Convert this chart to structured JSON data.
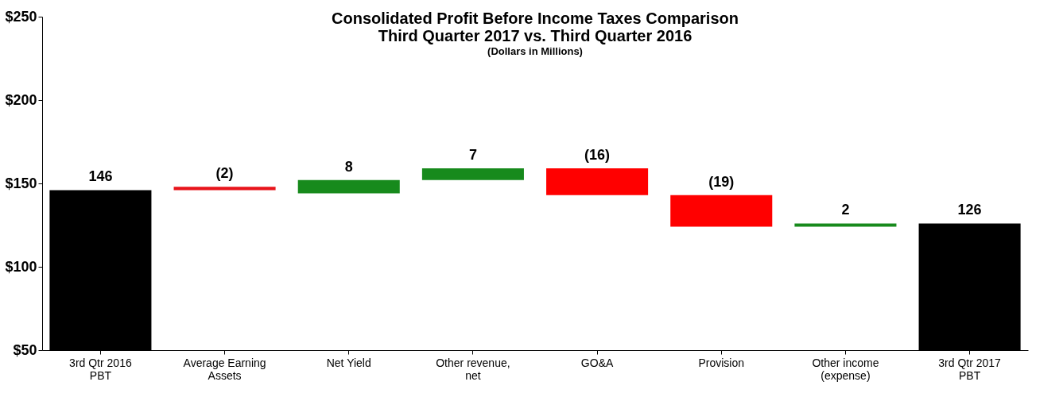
{
  "chart_data": {
    "type": "bar",
    "title": "Consolidated Profit Before Income Taxes Comparison\nThird Quarter 2017 vs. Third Quarter 2016",
    "subtitle": "(Dollars in Millions)",
    "categories": [
      "3rd Qtr 2016 PBT",
      "Average Earning Assets",
      "Net Yield",
      "Other revenue, net",
      "GO&A",
      "Provision",
      "Other income (expense)",
      "3rd Qtr 2017 PBT"
    ],
    "values": [
      146,
      -2,
      8,
      7,
      -16,
      -19,
      2,
      126
    ],
    "base": [
      null,
      148,
      144,
      152,
      159,
      143,
      124,
      null
    ],
    "colors": [
      "#000000",
      "#e8141b",
      "#178a1c",
      "#178a1c",
      "#ff0000",
      "#ff0000",
      "#178a1c",
      "#000000"
    ],
    "value_labels": [
      "146",
      "(2)",
      "8",
      "7",
      "(16)",
      "(19)",
      "2",
      "126"
    ],
    "ylim": [
      50,
      250
    ],
    "yticks": [
      {
        "value": 50,
        "label": "$50"
      },
      {
        "value": 100,
        "label": "$100"
      },
      {
        "value": 150,
        "label": "$150"
      },
      {
        "value": 200,
        "label": "$200"
      },
      {
        "value": 250,
        "label": "$250"
      }
    ],
    "grid": false
  }
}
